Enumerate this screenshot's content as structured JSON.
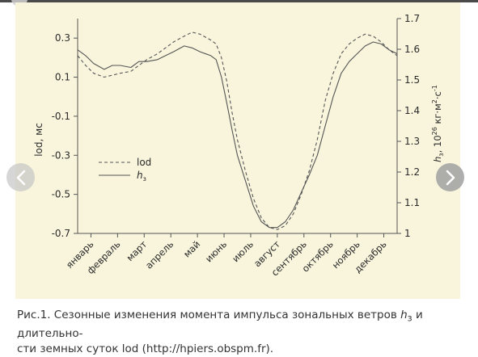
{
  "colors": {
    "panel_bg": "#f8f5dc",
    "line": "#555555",
    "caption_text": "#333333",
    "nav_button": "#c8c8c8"
  },
  "icons": {
    "prev": "chevron-left-icon",
    "next": "chevron-right-icon"
  },
  "caption": {
    "prefix": "Рис.1. Сезонные изменения момента импульса зональных ветров",
    "symbol": "h",
    "symbol_sub": "з",
    "middle": "и длительно-",
    "line2": "сти земных суток lod (http://hpiers.obspm.fr)."
  },
  "chart_data": {
    "type": "line",
    "categories": [
      "январь",
      "февраль",
      "март",
      "апрель",
      "май",
      "июнь",
      "июль",
      "август",
      "сентябрь",
      "октябрь",
      "ноябрь",
      "декабрь"
    ],
    "y_left": {
      "label": "lod, мс",
      "ylim": [
        -0.7,
        0.4
      ],
      "ticks": [
        0.3,
        0.1,
        -0.1,
        -0.3,
        -0.5,
        -0.7
      ],
      "tick_labels": [
        "0.3",
        "0.1",
        "-0.1",
        "-0.3",
        "-0.5",
        "-0.7"
      ]
    },
    "y_right": {
      "label": "h",
      "label_sub": "з",
      "label_unit": ", 10",
      "label_exp": "26",
      "label_tail": " кг·м",
      "label_exp2": "2",
      "label_tail2": "·с",
      "label_exp3": "-1",
      "ylim": [
        1.0,
        1.7
      ],
      "ticks": [
        1,
        1.1,
        1.2,
        1.3,
        1.4,
        1.5,
        1.6,
        1.7
      ],
      "tick_labels": [
        "1",
        "1.1",
        "1.2",
        "1.3",
        "1.4",
        "1.5",
        "1.6",
        "1.7"
      ]
    },
    "grid": false,
    "legend": {
      "position": "center-left",
      "entries": [
        {
          "text": "lod",
          "style": "dashed"
        },
        {
          "text": "h",
          "sub": "з",
          "style": "solid"
        }
      ]
    },
    "series": [
      {
        "name": "lod",
        "axis": "left",
        "style": "dashed",
        "x": [
          0,
          0.3,
          0.6,
          1.0,
          1.3,
          1.6,
          2.0,
          2.3,
          2.6,
          3.0,
          3.3,
          3.6,
          4.0,
          4.3,
          4.6,
          5.0,
          5.2,
          5.4,
          5.6,
          5.8,
          6.0,
          6.3,
          6.6,
          6.9,
          7.2,
          7.5,
          7.8,
          8.1,
          8.4,
          8.7,
          9.0,
          9.3,
          9.6,
          9.9,
          10.2,
          10.5,
          10.8,
          11.1,
          11.4,
          11.7,
          12.0
        ],
        "y": [
          0.21,
          0.16,
          0.12,
          0.1,
          0.11,
          0.12,
          0.13,
          0.16,
          0.19,
          0.22,
          0.25,
          0.28,
          0.31,
          0.33,
          0.32,
          0.29,
          0.27,
          0.2,
          0.08,
          -0.08,
          -0.22,
          -0.38,
          -0.52,
          -0.62,
          -0.67,
          -0.68,
          -0.66,
          -0.6,
          -0.5,
          -0.38,
          -0.22,
          -0.02,
          0.12,
          0.22,
          0.27,
          0.3,
          0.32,
          0.31,
          0.28,
          0.24,
          0.21
        ]
      },
      {
        "name": "h",
        "name_sub": "з",
        "axis": "left",
        "style": "solid",
        "x": [
          0,
          0.3,
          0.6,
          1.0,
          1.3,
          1.6,
          2.0,
          2.3,
          2.6,
          3.0,
          3.3,
          3.6,
          4.0,
          4.3,
          4.6,
          5.0,
          5.2,
          5.4,
          5.6,
          5.8,
          6.0,
          6.3,
          6.6,
          6.9,
          7.2,
          7.5,
          7.8,
          8.1,
          8.4,
          8.7,
          9.0,
          9.3,
          9.6,
          9.9,
          10.2,
          10.5,
          10.8,
          11.1,
          11.4,
          11.7,
          12.0
        ],
        "y": [
          0.24,
          0.21,
          0.17,
          0.14,
          0.16,
          0.16,
          0.15,
          0.18,
          0.18,
          0.19,
          0.21,
          0.23,
          0.26,
          0.25,
          0.23,
          0.21,
          0.19,
          0.1,
          -0.03,
          -0.17,
          -0.3,
          -0.43,
          -0.56,
          -0.64,
          -0.67,
          -0.67,
          -0.64,
          -0.58,
          -0.49,
          -0.4,
          -0.3,
          -0.15,
          0.0,
          0.12,
          0.18,
          0.22,
          0.26,
          0.28,
          0.27,
          0.24,
          0.22
        ]
      }
    ]
  }
}
